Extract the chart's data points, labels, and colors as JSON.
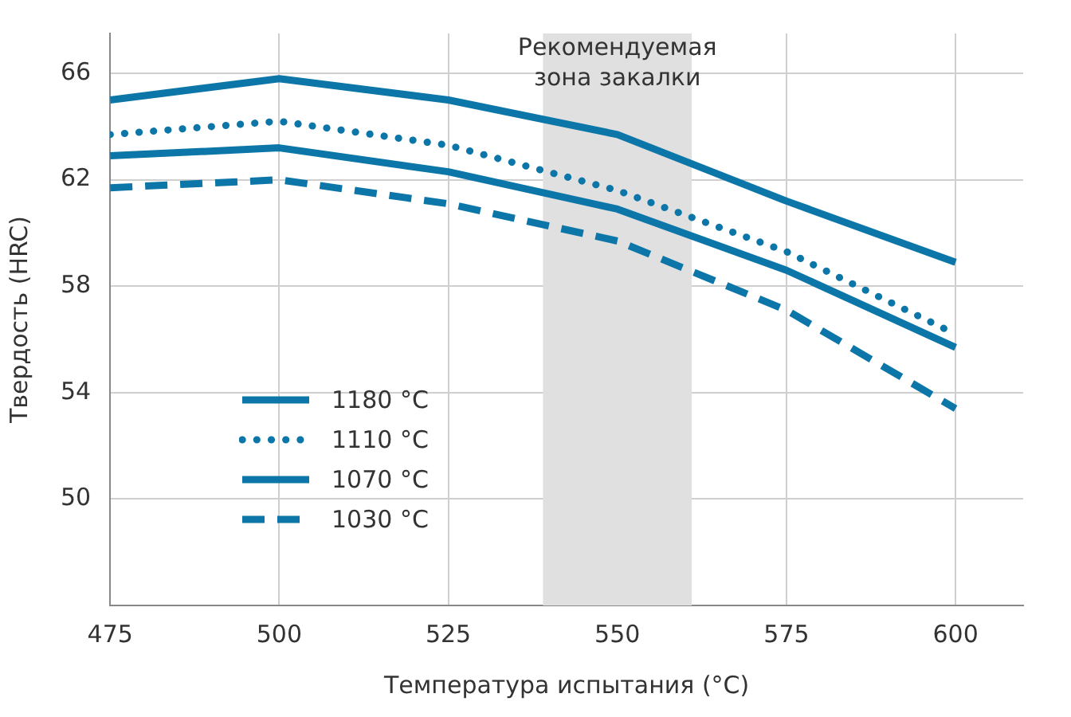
{
  "chart_data": {
    "type": "line",
    "xlabel": "Температура испытания (°C)",
    "ylabel": "Твердость (HRC)",
    "x": [
      475,
      500,
      525,
      550,
      575,
      600
    ],
    "series": [
      {
        "name": "1180 °C",
        "color": "#0d76a8",
        "values": [
          65.0,
          65.8,
          65.0,
          63.7,
          61.2,
          58.9
        ],
        "line_style": "solid"
      },
      {
        "name": "1110 °C",
        "color": "#0d76a8",
        "values": [
          63.7,
          64.2,
          63.3,
          61.6,
          59.3,
          56.2
        ],
        "line_style": "dotted"
      },
      {
        "name": "1070 °C",
        "color": "#0d76a8",
        "values": [
          62.9,
          63.2,
          62.3,
          60.9,
          58.6,
          55.7
        ],
        "line_style": "solid"
      },
      {
        "name": "1030 °C",
        "color": "#0d76a8",
        "values": [
          61.7,
          62.0,
          61.1,
          59.7,
          57.1,
          53.4
        ],
        "line_style": "dashed"
      }
    ],
    "xlim": [
      475,
      610
    ],
    "ylim": [
      46,
      67.5
    ],
    "xticks": [
      475,
      500,
      525,
      550,
      575,
      600
    ],
    "yticks": [
      50,
      54,
      58,
      62,
      66
    ],
    "bands": [
      {
        "axis": "x",
        "from": 539,
        "to": 561,
        "label": "Рекомендуемая зона закалки",
        "color": "#e0e0e0"
      }
    ],
    "grid": true,
    "legend": "bottom left",
    "marker": "none"
  }
}
